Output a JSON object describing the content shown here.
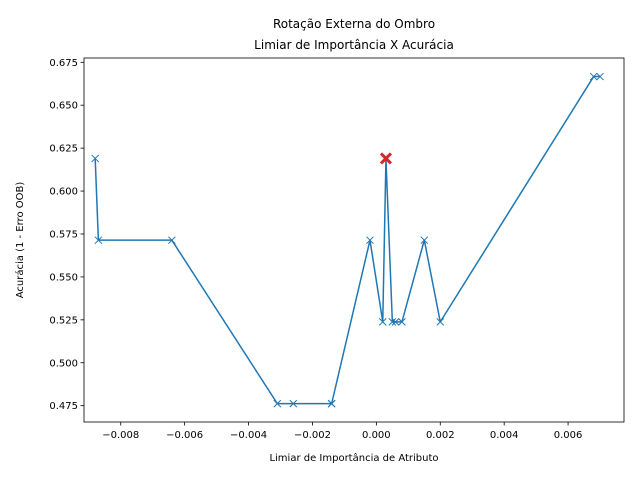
{
  "chart_data": {
    "type": "line",
    "title_line1": "Rotação Externa do Ombro",
    "title_line2": "Limiar de Importância X Acurácia",
    "xlabel": "Limiar de Importância de Atributo",
    "ylabel": "Acurácia (1 - Erro OOB)",
    "xlim": [
      -0.00915,
      0.00775
    ],
    "ylim": [
      0.4655,
      0.6775
    ],
    "xticks": [
      -0.008,
      -0.006,
      -0.004,
      -0.002,
      0.0,
      0.002,
      0.004,
      0.006
    ],
    "xtick_labels": [
      "−0.008",
      "−0.006",
      "−0.004",
      "−0.002",
      "0.000",
      "0.002",
      "0.004",
      "0.006"
    ],
    "yticks": [
      0.475,
      0.5,
      0.525,
      0.55,
      0.575,
      0.6,
      0.625,
      0.65,
      0.675
    ],
    "ytick_labels": [
      "0.475",
      "0.500",
      "0.525",
      "0.550",
      "0.575",
      "0.600",
      "0.625",
      "0.650",
      "0.675"
    ],
    "grid": false,
    "line_color": "#1f77b4",
    "highlight_color": "#d62728",
    "series": [
      {
        "x": [
          -0.0088,
          -0.0087,
          -0.0064,
          -0.0031,
          -0.0026,
          -0.0014,
          -0.0014,
          -0.0002,
          0.0002,
          0.0003,
          0.0005,
          0.0006,
          0.0008,
          0.0015,
          0.002,
          0.0068,
          0.007
        ],
        "y": [
          0.619,
          0.5714,
          0.5714,
          0.4762,
          0.4762,
          0.4762,
          0.4762,
          0.5714,
          0.5238,
          0.619,
          0.5238,
          0.5238,
          0.5238,
          0.5714,
          0.5238,
          0.6667,
          0.6667
        ]
      }
    ],
    "highlight_point": {
      "x": 0.0003,
      "y": 0.619
    }
  }
}
